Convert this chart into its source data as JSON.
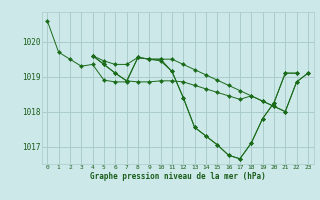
{
  "title": "Graphe pression niveau de la mer (hPa)",
  "background_color": "#cce8e8",
  "grid_color": "#aacccc",
  "line_color": "#1a6b1a",
  "marker_color": "#1a6b1a",
  "ylim": [
    1016.5,
    1020.85
  ],
  "yticks": [
    1017,
    1018,
    1019,
    1020
  ],
  "xticks": [
    0,
    1,
    2,
    3,
    4,
    5,
    6,
    7,
    8,
    9,
    10,
    11,
    12,
    13,
    14,
    15,
    16,
    17,
    18,
    19,
    20,
    21,
    22,
    23
  ],
  "series": [
    [
      1020.6,
      1019.7,
      1019.5,
      1019.3,
      1019.35,
      1018.9,
      1018.85,
      1018.85,
      1019.55,
      1019.5,
      1019.5,
      1019.15,
      1018.4,
      1017.55,
      1017.3,
      1017.05,
      1016.75,
      1016.65,
      1017.1,
      1017.8,
      1018.25,
      1019.1,
      1019.1,
      null
    ],
    [
      null,
      null,
      null,
      null,
      1019.6,
      1019.45,
      1019.35,
      1019.35,
      1019.55,
      1019.5,
      1019.5,
      1019.5,
      1019.35,
      1019.2,
      1019.05,
      1018.9,
      1018.75,
      1018.6,
      1018.45,
      1018.3,
      1018.15,
      1018.0,
      1018.85,
      1019.1
    ],
    [
      null,
      null,
      null,
      null,
      1019.6,
      1019.35,
      1019.1,
      1018.88,
      1019.55,
      1019.5,
      1019.45,
      1019.15,
      1018.4,
      1017.55,
      1017.3,
      1017.05,
      1016.75,
      1016.65,
      1017.1,
      1017.8,
      1018.25,
      1019.1,
      1019.1,
      null
    ],
    [
      null,
      null,
      null,
      null,
      1019.6,
      1019.35,
      1019.1,
      1018.88,
      1018.85,
      1018.85,
      1018.88,
      1018.88,
      1018.85,
      1018.75,
      1018.65,
      1018.55,
      1018.45,
      1018.35,
      1018.45,
      1018.3,
      1018.15,
      1018.0,
      1018.85,
      1019.1
    ]
  ]
}
